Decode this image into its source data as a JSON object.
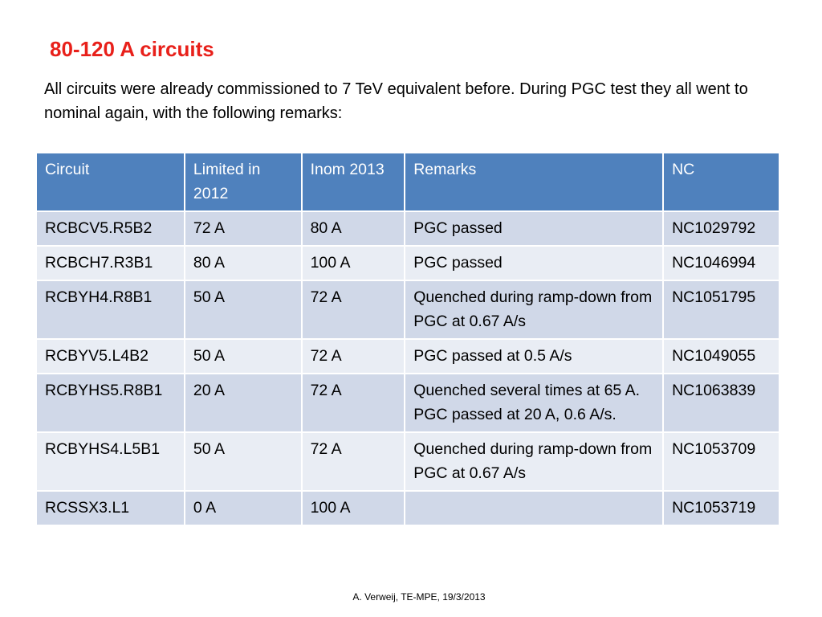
{
  "slide": {
    "title": "80-120 A circuits",
    "intro": "All circuits were already commissioned to 7 TeV equivalent before. During PGC test they all went to nominal again, with the following remarks:",
    "footer": "A. Verweij, TE-MPE, 19/3/2013"
  },
  "table": {
    "headers": [
      "Circuit",
      "Limited in 2012",
      "Inom 2013",
      "Remarks",
      "NC"
    ],
    "rows": [
      [
        "RCBCV5.R5B2",
        "72 A",
        "80 A",
        "PGC passed",
        "NC1029792"
      ],
      [
        "RCBCH7.R3B1",
        "80 A",
        "100 A",
        "PGC passed",
        "NC1046994"
      ],
      [
        "RCBYH4.R8B1",
        "50 A",
        "72 A",
        "Quenched during ramp-down from PGC at 0.67 A/s",
        "NC1051795"
      ],
      [
        "RCBYV5.L4B2",
        "50 A",
        "72 A",
        "PGC passed at 0.5 A/s",
        "NC1049055"
      ],
      [
        "RCBYHS5.R8B1",
        "20 A",
        "72 A",
        "Quenched several times at 65 A. PGC passed at 20 A, 0.6 A/s.",
        "NC1063839"
      ],
      [
        "RCBYHS4.L5B1",
        "50 A",
        "72 A",
        "Quenched during ramp-down from PGC at 0.67 A/s",
        "NC1053709"
      ],
      [
        "RCSSX3.L1",
        "0 A",
        "100 A",
        "",
        "NC1053719"
      ]
    ]
  },
  "colors": {
    "title": "#e8201a",
    "header_bg": "#4f81bd",
    "row_odd": "#d0d8e8",
    "row_even": "#e9edf4"
  }
}
